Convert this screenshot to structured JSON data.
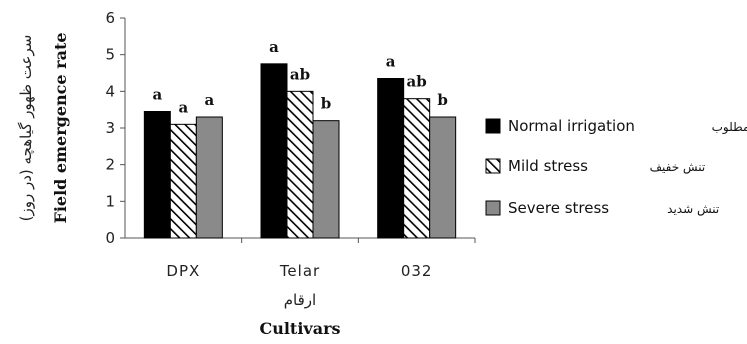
{
  "chart_data": {
    "type": "bar",
    "categories": [
      "DPX",
      "Telar",
      "032"
    ],
    "series": [
      {
        "name": "Normal irrigation",
        "name_fa": "آبیاری مطلوب",
        "values": [
          3.45,
          4.75,
          4.35
        ],
        "letters": [
          "a",
          "a",
          "a"
        ],
        "fill": "#000000",
        "pattern": "solid"
      },
      {
        "name": "Mild stress",
        "name_fa": "تنش خفیف",
        "values": [
          3.1,
          4.0,
          3.8
        ],
        "letters": [
          "a",
          "ab",
          "ab"
        ],
        "fill": "#ffffff",
        "pattern": "hatch"
      },
      {
        "name": "Severe stress",
        "name_fa": "تنش شدید",
        "values": [
          3.3,
          3.2,
          3.3
        ],
        "letters": [
          "a",
          "b",
          "b"
        ],
        "fill": "#8a8a8a",
        "pattern": "solid"
      }
    ],
    "ylabel": "Field emergence rate",
    "ylabel_fa": "سرعت ظهور گیاهچه (در روز)",
    "xlabel": "Cultivars",
    "xlabel_fa": "ارقام",
    "ylim": [
      0,
      6
    ],
    "yticks": [
      "0",
      "1",
      "2",
      "3",
      "4",
      "5",
      "6"
    ],
    "grid": false,
    "legend_position": "right"
  }
}
